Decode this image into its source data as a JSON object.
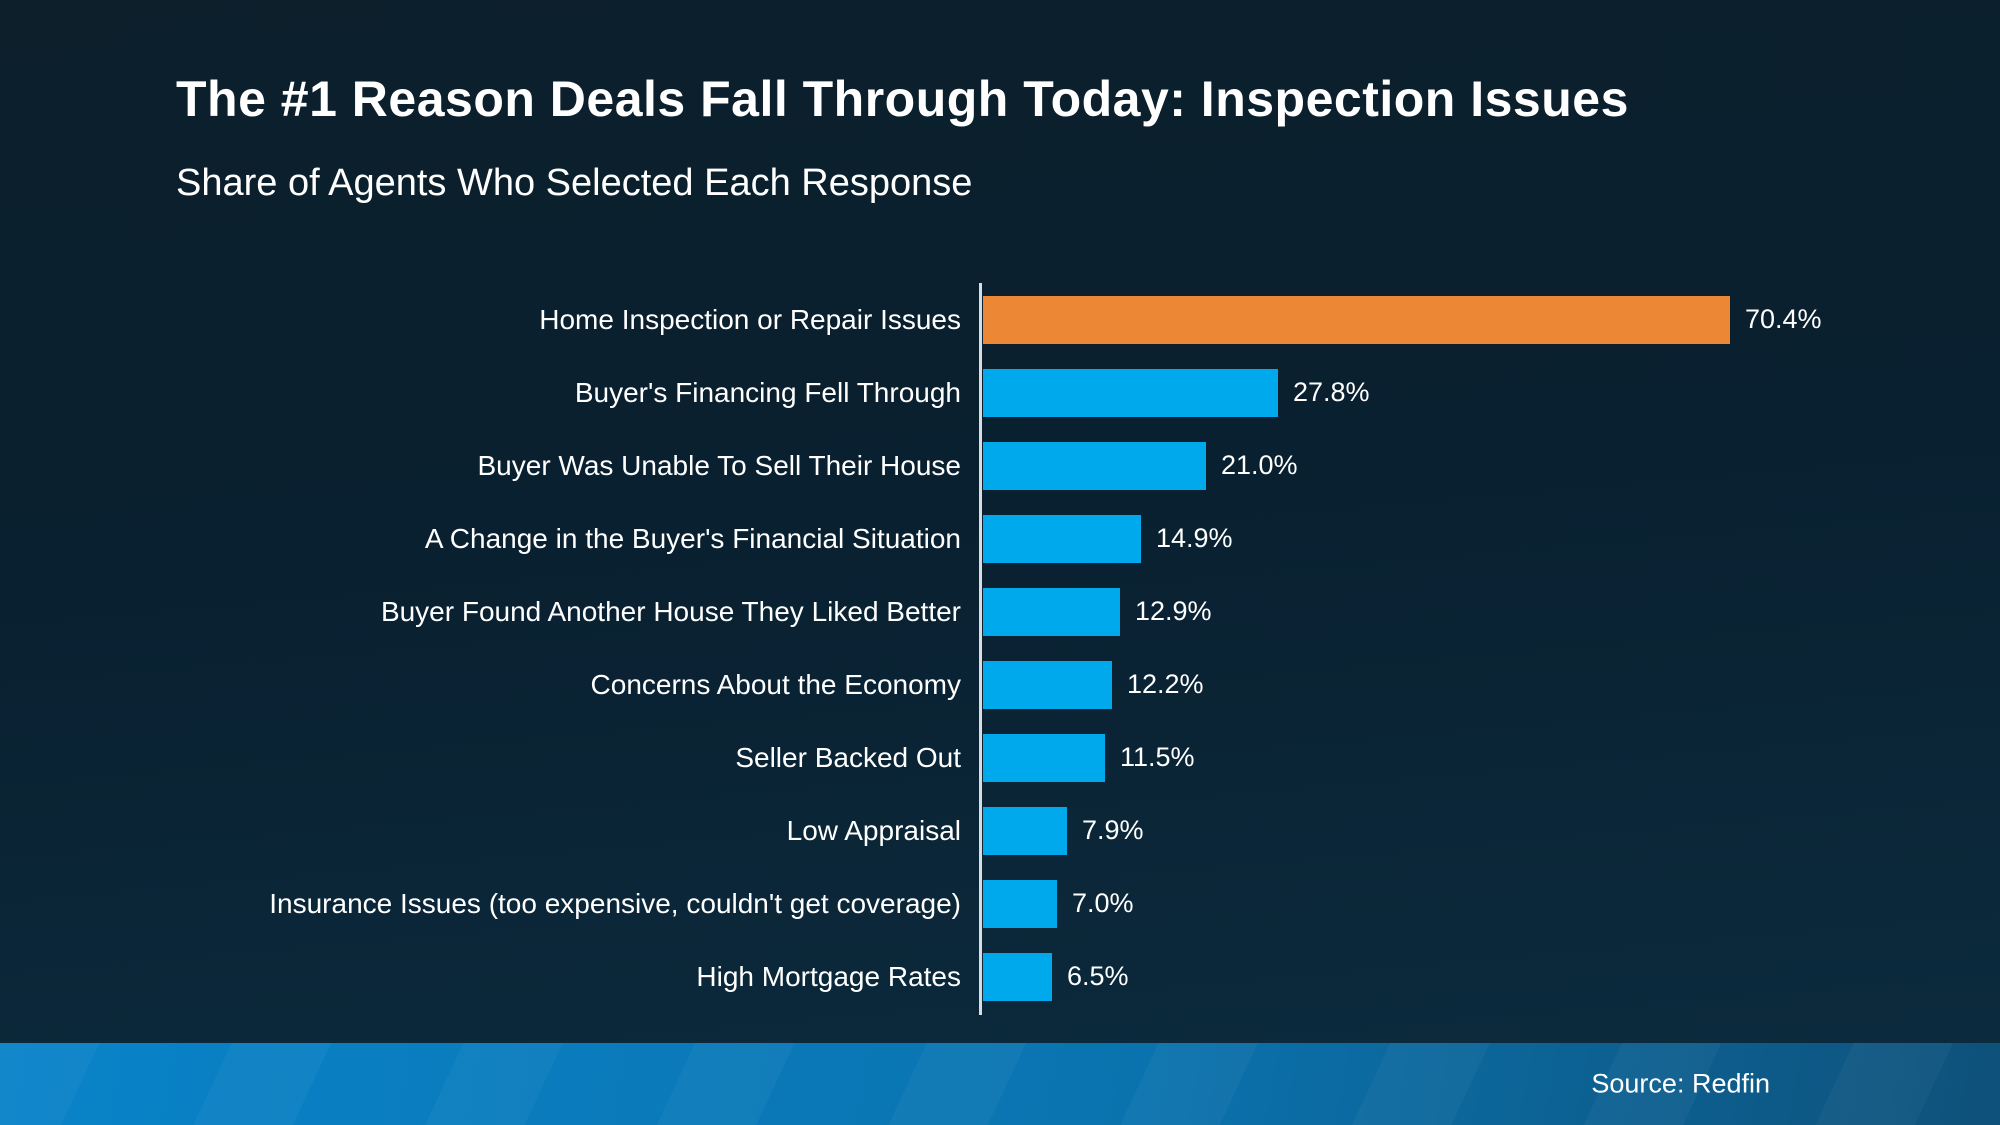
{
  "header": {
    "title": "The #1 Reason Deals Fall Through Today: Inspection Issues",
    "subtitle": "Share of Agents Who Selected Each Response"
  },
  "chart_data": {
    "type": "bar",
    "orientation": "horizontal",
    "categories": [
      "Home Inspection or Repair Issues",
      "Buyer's Financing Fell Through",
      "Buyer Was Unable To Sell Their House",
      "A Change in the Buyer's Financial Situation",
      "Buyer Found Another House They Liked Better",
      "Concerns About the Economy",
      "Seller Backed Out",
      "Low Appraisal",
      "Insurance Issues (too expensive, couldn't get coverage)",
      "High Mortgage Rates"
    ],
    "values": [
      70.4,
      27.8,
      21.0,
      14.9,
      12.9,
      12.2,
      11.5,
      7.9,
      7.0,
      6.5
    ],
    "value_labels": [
      "70.4%",
      "27.8%",
      "21.0%",
      "14.9%",
      "12.9%",
      "12.2%",
      "11.5%",
      "7.9%",
      "7.0%",
      "6.5%"
    ],
    "highlight_index": 0,
    "highlight_color": "#EC8735",
    "bar_color": "#00A8EC",
    "axis_color": "#D9DDE2",
    "xlim": [
      0,
      75
    ],
    "grid": false,
    "legend": false,
    "title": "The #1 Reason Deals Fall Through Today: Inspection Issues",
    "subtitle": "Share of Agents Who Selected Each Response"
  },
  "footer": {
    "source_label": "Source: Redfin",
    "gradient_left": "#0983C9",
    "gradient_right": "#0E517A"
  },
  "colors": {
    "background_top": "#0C1F2B",
    "background_bottom": "#0C2C3F",
    "text": "#FFFFFF"
  }
}
